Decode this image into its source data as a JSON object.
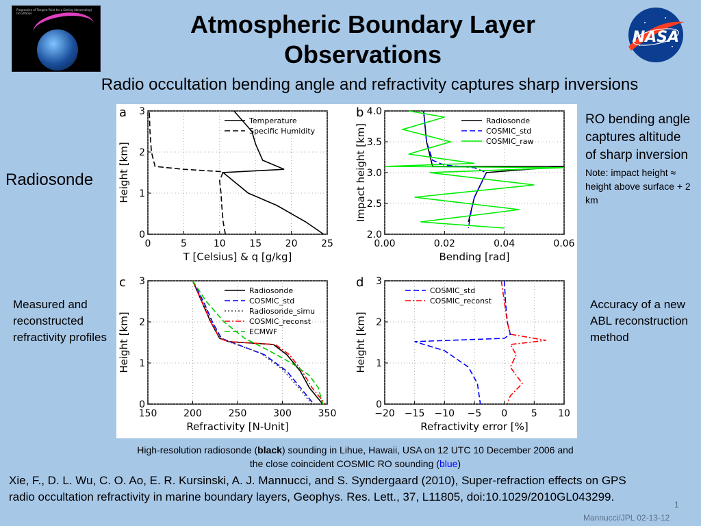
{
  "slide": {
    "title": "Atmospheric Boundary Layer Observations",
    "subtitle": "Radio occultation bending angle and refractivity captures sharp inversions",
    "radiosonde_label": "Radiosonde",
    "ro_note_main": "RO bending angle captures altitude of sharp inversion",
    "ro_note_small": "Note: impact height ≈ height above surface + 2 km",
    "measured_note": "Measured and reconstructed refractivity profiles",
    "accuracy_note": "Accuracy of a new ABL reconstruction method",
    "caption_pre": "High-resolution radiosonde (",
    "caption_black": "black",
    "caption_mid": ") sounding in Lihue, Hawaii, USA on 12 UTC 10 December 2006 and the close coincident COSMIC RO sounding (",
    "caption_blue": "blue",
    "caption_post": ")",
    "reference": "Xie, F., D. L. Wu, C. O. Ao, E. R. Kursinski, A. J. Mannucci, and S. Syndergaard (2010), Super-refraction effects on GPS radio occultation refractivity in marine boundary layers, Geophys. Res. Lett., 37, L11805, doi:10.1029/2010GL043299.",
    "slide_number": "1",
    "footer": "Mannucci/JPL 02-13-12",
    "logo_text": "NASA",
    "thumb_caption": "Progression of Tangent Point for a Setting (descending) Occultation",
    "colors": {
      "background": "#a7c7e7",
      "caption_blue": "#0000ff",
      "cosmic_std": "#0000ff",
      "cosmic_raw": "#00ee00",
      "cosmic_reconst": "#ff0000",
      "ecmwf": "#00cc00"
    }
  },
  "chart_data": [
    {
      "panel": "a",
      "type": "line",
      "xlabel": "T [Celsius] & q [g/kg]",
      "ylabel": "Height [km]",
      "xlim": [
        0,
        25
      ],
      "ylim": [
        0,
        3
      ],
      "xticks": [
        0,
        5,
        10,
        15,
        20,
        25
      ],
      "yticks": [
        0,
        1,
        2,
        3
      ],
      "legend": "top-right",
      "grid": true,
      "series": [
        {
          "name": "Temperature",
          "style": "solid",
          "color": "#000000",
          "points": [
            [
              24.5,
              0
            ],
            [
              22,
              0.3
            ],
            [
              18,
              0.7
            ],
            [
              14,
              1.0
            ],
            [
              10.5,
              1.5
            ],
            [
              19,
              1.58
            ],
            [
              16,
              1.8
            ],
            [
              15,
              2.2
            ],
            [
              14.5,
              2.5
            ],
            [
              13.5,
              2.7
            ],
            [
              12,
              3.0
            ]
          ]
        },
        {
          "name": "Specific Humidity",
          "style": "dashed",
          "color": "#000000",
          "points": [
            [
              10.8,
              0
            ],
            [
              10.5,
              0.3
            ],
            [
              10.3,
              0.7
            ],
            [
              10.2,
              1.0
            ],
            [
              10.0,
              1.3
            ],
            [
              10.5,
              1.52
            ],
            [
              5,
              1.58
            ],
            [
              1,
              1.65
            ],
            [
              0.5,
              2.0
            ],
            [
              0.3,
              2.5
            ],
            [
              0.2,
              3.0
            ]
          ]
        }
      ]
    },
    {
      "panel": "b",
      "type": "line",
      "xlabel": "Bending [rad]",
      "ylabel": "Impact height [km]",
      "xlim": [
        0.0,
        0.06
      ],
      "ylim": [
        2.0,
        4.0
      ],
      "xticks": [
        "0.00",
        "0.02",
        "0.04",
        "0.06"
      ],
      "yticks": [
        "2.0",
        "2.5",
        "3.0",
        "3.5",
        "4.0"
      ],
      "legend": "top-right",
      "grid": true,
      "series": [
        {
          "name": "Radiosonde",
          "style": "solid",
          "color": "#000000",
          "points": [
            [
              0.013,
              4.0
            ],
            [
              0.014,
              3.5
            ],
            [
              0.015,
              3.3
            ],
            [
              0.016,
              3.1
            ],
            [
              0.06,
              3.1
            ],
            [
              0.034,
              3.0
            ],
            [
              0.032,
              2.8
            ],
            [
              0.03,
              2.6
            ],
            [
              0.029,
              2.4
            ],
            [
              0.028,
              2.2
            ]
          ]
        },
        {
          "name": "COSMIC_std",
          "style": "dashed",
          "color": "#0000ff",
          "points": [
            [
              0.013,
              4.0
            ],
            [
              0.014,
              3.5
            ],
            [
              0.016,
              3.2
            ],
            [
              0.02,
              3.12
            ],
            [
              0.03,
              3.08
            ],
            [
              0.034,
              3.0
            ],
            [
              0.032,
              2.8
            ],
            [
              0.03,
              2.6
            ],
            [
              0.029,
              2.4
            ],
            [
              0.028,
              2.1
            ]
          ]
        },
        {
          "name": "COSMIC_raw",
          "style": "solid",
          "color": "#00ee00",
          "points": [
            [
              0.008,
              4.0
            ],
            [
              0.02,
              3.9
            ],
            [
              0.006,
              3.7
            ],
            [
              0.022,
              3.5
            ],
            [
              0.008,
              3.3
            ],
            [
              0.03,
              3.15
            ],
            [
              0.0,
              3.1
            ],
            [
              0.06,
              3.08
            ],
            [
              0.015,
              3.0
            ],
            [
              0.05,
              2.8
            ],
            [
              0.01,
              2.6
            ],
            [
              0.045,
              2.4
            ],
            [
              0.012,
              2.2
            ],
            [
              0.04,
              2.1
            ]
          ]
        }
      ]
    },
    {
      "panel": "c",
      "type": "line",
      "xlabel": "Refractivity [N-Unit]",
      "ylabel": "Height [km]",
      "xlim": [
        150,
        350
      ],
      "ylim": [
        0,
        3
      ],
      "xticks": [
        150,
        200,
        250,
        300,
        350
      ],
      "yticks": [
        0,
        1,
        2,
        3
      ],
      "legend": "top-right",
      "grid": true,
      "series": [
        {
          "name": "Radiosonde",
          "style": "solid",
          "color": "#000000",
          "points": [
            [
              200,
              3
            ],
            [
              210,
              2.5
            ],
            [
              220,
              2.0
            ],
            [
              230,
              1.6
            ],
            [
              240,
              1.52
            ],
            [
              290,
              1.45
            ],
            [
              305,
              1.2
            ],
            [
              320,
              0.8
            ],
            [
              330,
              0.4
            ],
            [
              345,
              0
            ]
          ]
        },
        {
          "name": "COSMIC_std",
          "style": "dashed",
          "color": "#0000ff",
          "points": [
            [
              200,
              3
            ],
            [
              212,
              2.5
            ],
            [
              222,
              2.0
            ],
            [
              232,
              1.6
            ],
            [
              250,
              1.45
            ],
            [
              280,
              1.2
            ],
            [
              305,
              0.8
            ],
            [
              320,
              0.4
            ],
            [
              335,
              0
            ]
          ]
        },
        {
          "name": "Radiosonde_simu",
          "style": "dotted",
          "color": "#444444",
          "points": [
            [
              200,
              3
            ],
            [
              211,
              2.5
            ],
            [
              221,
              2.0
            ],
            [
              231,
              1.6
            ],
            [
              245,
              1.48
            ],
            [
              275,
              1.25
            ],
            [
              300,
              0.85
            ],
            [
              318,
              0.4
            ],
            [
              333,
              0
            ]
          ]
        },
        {
          "name": "COSMIC_reconst",
          "style": "dashdot",
          "color": "#ff0000",
          "points": [
            [
              200,
              3
            ],
            [
              210,
              2.5
            ],
            [
              220,
              2.0
            ],
            [
              230,
              1.6
            ],
            [
              240,
              1.52
            ],
            [
              292,
              1.45
            ],
            [
              308,
              1.2
            ],
            [
              322,
              0.8
            ],
            [
              333,
              0.4
            ],
            [
              348,
              0
            ]
          ]
        },
        {
          "name": "ECMWF",
          "style": "dashed",
          "color": "#00cc00",
          "points": [
            [
              200,
              3
            ],
            [
              215,
              2.5
            ],
            [
              235,
              2.0
            ],
            [
              258,
              1.6
            ],
            [
              285,
              1.3
            ],
            [
              310,
              1.0
            ],
            [
              330,
              0.7
            ],
            [
              340,
              0.4
            ],
            [
              345,
              0
            ]
          ]
        }
      ]
    },
    {
      "panel": "d",
      "type": "line",
      "xlabel": "Refractivity error [%]",
      "ylabel": "Height [km]",
      "xlim": [
        -20,
        10
      ],
      "ylim": [
        0,
        3
      ],
      "xticks": [
        -20,
        -15,
        -10,
        -5,
        0,
        5,
        10
      ],
      "yticks": [
        0,
        1,
        2,
        3
      ],
      "legend": "top-left",
      "grid": true,
      "series": [
        {
          "name": "COSMIC_std",
          "style": "dashed",
          "color": "#0000ff",
          "points": [
            [
              0,
              3
            ],
            [
              0.2,
              2.5
            ],
            [
              0.5,
              2.0
            ],
            [
              1.0,
              1.7
            ],
            [
              0,
              1.6
            ],
            [
              -15,
              1.52
            ],
            [
              -10,
              1.3
            ],
            [
              -6,
              0.9
            ],
            [
              -4.5,
              0.5
            ],
            [
              -4,
              0
            ]
          ]
        },
        {
          "name": "COSMIC_reconst",
          "style": "dashdot",
          "color": "#ff0000",
          "points": [
            [
              -0.5,
              3
            ],
            [
              0,
              2.5
            ],
            [
              0.5,
              2.0
            ],
            [
              1.0,
              1.7
            ],
            [
              7,
              1.55
            ],
            [
              1,
              1.45
            ],
            [
              2,
              1.2
            ],
            [
              1,
              0.9
            ],
            [
              3,
              0.5
            ],
            [
              1,
              0.2
            ],
            [
              0.5,
              0
            ]
          ]
        }
      ]
    }
  ]
}
